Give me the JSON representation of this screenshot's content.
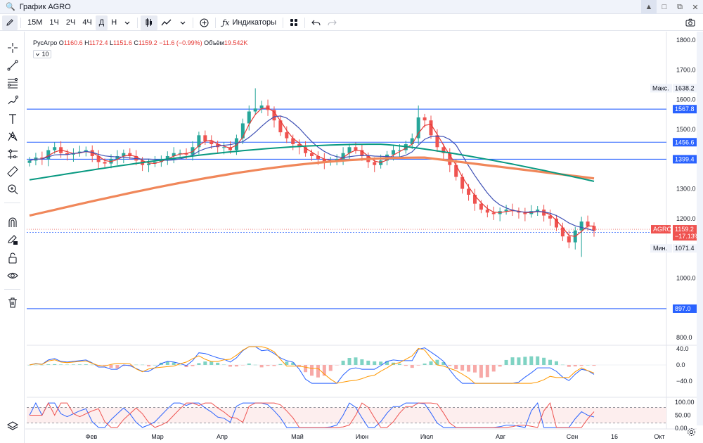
{
  "window": {
    "title": "График AGRO",
    "buttons": [
      "▲",
      "□",
      "⧉",
      "✕"
    ]
  },
  "toolbar": {
    "pencil_icon": "pencil-icon",
    "intervals": [
      "15М",
      "1Ч",
      "2Ч",
      "4Ч",
      "Д",
      "Н"
    ],
    "active_interval": "Д",
    "indicators_label": "Индикаторы"
  },
  "legend": {
    "name": "РусАгро",
    "o_label": "O",
    "o": "1160.6",
    "h_label": "H",
    "h": "1172.4",
    "l_label": "L",
    "l": "1151.6",
    "c_label": "C",
    "c": "1159.2",
    "change": "−11.6 (−0.99%)",
    "vol_label": "Объём",
    "vol": "19.542K",
    "sub_count": "10"
  },
  "price_axis": {
    "ticks": [
      "1800.0",
      "1700.0",
      "1600.0",
      "1500.0",
      "1400.0",
      "1300.0",
      "1200.0",
      "1100.0",
      "1000.0",
      "900.0",
      "800.0"
    ],
    "max_label": "Макс.",
    "max_value": "1638.2",
    "min_label": "Мин.",
    "min_value": "1071.4",
    "levels": [
      "1567.8",
      "1456.6",
      "1399.4",
      "1153.2",
      "897.0"
    ],
    "current_symbol": "AGRO",
    "current_price": "1159.2",
    "current_change": "−17.13%"
  },
  "macd_axis": [
    "40.0",
    "0.0",
    "−40.0"
  ],
  "stoch_axis": [
    "100.00",
    "50.00",
    "0.00"
  ],
  "time_axis": [
    "Фев",
    "Мар",
    "Апр",
    "Май",
    "Июн",
    "Июл",
    "Авг",
    "Сен",
    "16",
    "Окт"
  ],
  "colors": {
    "up": "#26a69a",
    "down": "#ef5350",
    "level_line": "#2962ff",
    "ma_fast": "#e53935",
    "ma_mid": "#3f51b5",
    "ma_slow": "#089981",
    "ma_long": "#f0875a"
  },
  "chart_data": {
    "type": "candlestick",
    "series_close_approx": [
      1395,
      1405,
      1400,
      1430,
      1440,
      1420,
      1415,
      1420,
      1425,
      1430,
      1410,
      1390,
      1385,
      1400,
      1410,
      1420,
      1410,
      1395,
      1380,
      1385,
      1390,
      1400,
      1410,
      1420,
      1420,
      1415,
      1440,
      1480,
      1460,
      1450,
      1440,
      1440,
      1430,
      1470,
      1520,
      1560,
      1570,
      1580,
      1565,
      1530,
      1490,
      1470,
      1450,
      1440,
      1420,
      1410,
      1400,
      1390,
      1395,
      1400,
      1420,
      1440,
      1430,
      1410,
      1390,
      1380,
      1395,
      1415,
      1430,
      1430,
      1450,
      1470,
      1540,
      1530,
      1480,
      1440,
      1420,
      1380,
      1340,
      1300,
      1280,
      1250,
      1230,
      1220,
      1215,
      1225,
      1230,
      1225,
      1220,
      1215,
      1225,
      1230,
      1210,
      1200,
      1170,
      1140,
      1120,
      1160,
      1190,
      1175,
      1159
    ],
    "max_price": "1638.2",
    "min_price": "1071.4"
  }
}
